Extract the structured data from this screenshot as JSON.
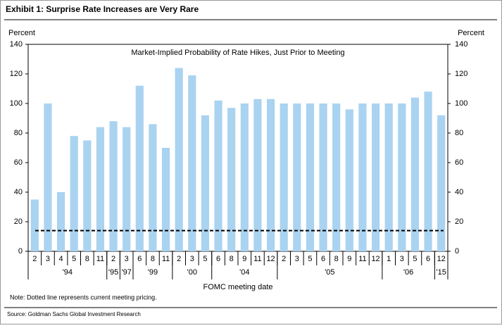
{
  "chart_data": {
    "type": "bar",
    "title": "Exhibit 1: Surprise Rate Increases are Very Rare",
    "subtitle": "Market-Implied Probability of Rate Hikes, Just Prior to Meeting",
    "ylabel": "Percent",
    "y2label": "Percent",
    "xlabel": "FOMC meeting date",
    "note": "Note: Dotted line represents current meeting pricing.",
    "source": "Source: Goldman Sachs Global Investment Research",
    "categories": [
      "2",
      "3",
      "4",
      "5",
      "8",
      "11",
      "2",
      "3",
      "6",
      "8",
      "11",
      "2",
      "3",
      "5",
      "6",
      "8",
      "9",
      "11",
      "12",
      "2",
      "3",
      "5",
      "6",
      "8",
      "9",
      "11",
      "12",
      "1",
      "3",
      "5",
      "6",
      "12"
    ],
    "years": [
      "'94",
      "'94",
      "'94",
      "'94",
      "'94",
      "'94",
      "'95",
      "'97",
      "'99",
      "'99",
      "'99",
      "'00",
      "'00",
      "'00",
      "'04",
      "'04",
      "'04",
      "'04",
      "'04",
      "'05",
      "'05",
      "'05",
      "'05",
      "'05",
      "'05",
      "'05",
      "'05",
      "'06",
      "'06",
      "'06",
      "'06",
      "'15"
    ],
    "values": [
      35,
      100,
      40,
      78,
      75,
      84,
      88,
      84,
      112,
      86,
      70,
      124,
      119,
      92,
      102,
      97,
      100,
      103,
      103,
      100,
      100,
      100,
      100,
      100,
      96,
      100,
      100,
      100,
      100,
      104,
      108,
      92
    ],
    "color": "#a9d3f0",
    "hline": 14,
    "hline_color": "#000000",
    "ylim": [
      0,
      140
    ],
    "yticks": [
      0,
      20,
      40,
      60,
      80,
      100,
      120,
      140
    ],
    "y2lim": [
      0,
      140
    ],
    "y2ticks": [
      0,
      20,
      40,
      60,
      80,
      100,
      120,
      140
    ]
  }
}
